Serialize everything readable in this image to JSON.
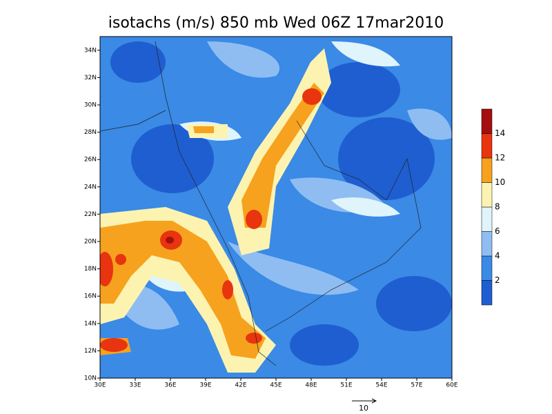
{
  "chart_data": {
    "type": "contour",
    "title": "isotachs (m/s) 850 mb Wed 06Z 17mar2010",
    "xlim": [
      30,
      60
    ],
    "ylim": [
      10,
      35
    ],
    "xticks": [
      {
        "value": 30,
        "label": "30E"
      },
      {
        "value": 33,
        "label": "33E"
      },
      {
        "value": 36,
        "label": "36E"
      },
      {
        "value": 39,
        "label": "39E"
      },
      {
        "value": 42,
        "label": "42E"
      },
      {
        "value": 45,
        "label": "45E"
      },
      {
        "value": 48,
        "label": "48E"
      },
      {
        "value": 51,
        "label": "51E"
      },
      {
        "value": 54,
        "label": "54E"
      },
      {
        "value": 57,
        "label": "57E"
      },
      {
        "value": 60,
        "label": "60E"
      }
    ],
    "yticks": [
      {
        "value": 10,
        "label": "10N"
      },
      {
        "value": 12,
        "label": "12N"
      },
      {
        "value": 14,
        "label": "14N"
      },
      {
        "value": 16,
        "label": "16N"
      },
      {
        "value": 18,
        "label": "18N"
      },
      {
        "value": 20,
        "label": "20N"
      },
      {
        "value": 22,
        "label": "22N"
      },
      {
        "value": 24,
        "label": "24N"
      },
      {
        "value": 26,
        "label": "26N"
      },
      {
        "value": 28,
        "label": "28N"
      },
      {
        "value": 30,
        "label": "30N"
      },
      {
        "value": 32,
        "label": "32N"
      },
      {
        "value": 34,
        "label": "34N"
      }
    ],
    "colorbar": {
      "levels": [
        2,
        4,
        6,
        8,
        10,
        12,
        14
      ],
      "colors": [
        "#1f5ed0",
        "#3a8ae6",
        "#8fbdf2",
        "#dff4fb",
        "#fdf3b0",
        "#f6a21e",
        "#e8340f",
        "#a50f0f"
      ]
    },
    "reference_vector": "10"
  }
}
